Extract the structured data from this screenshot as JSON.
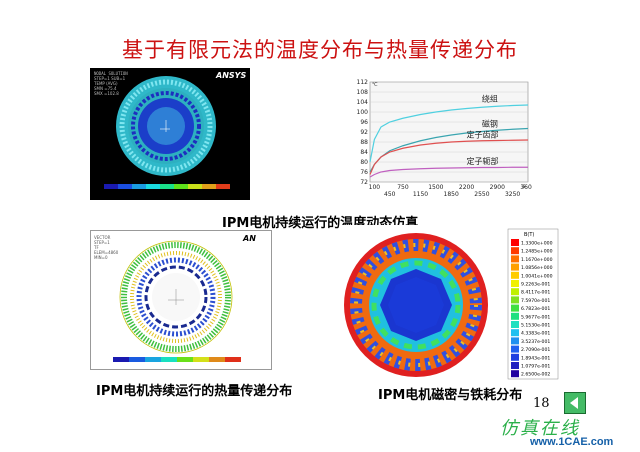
{
  "title": "基于有限元法的温度分布与热量传递分布",
  "captions": {
    "top": "IPM电机持续运行的温度动态仿真",
    "bottom_left": "IPM电机持续运行的热量传递分布",
    "bottom_right": "IPM电机磁密与铁耗分布"
  },
  "logos": {
    "ansys_top": "ANSYS",
    "ansys_bottom": "AN"
  },
  "page_number": "18",
  "watermark": {
    "text": "仿真在线",
    "url": "www.1CAE.com"
  },
  "colors": {
    "title": "#cc1111",
    "watermark": "#2bb04a",
    "url": "#1560a8",
    "nav": "#44bb66"
  },
  "legend_br": {
    "header": "B(T)",
    "values": [
      "1.3300e+000",
      "1.2485e+000",
      "1.1670e+000",
      "1.0856e+000",
      "1.0041e+000",
      "9.2263e-001",
      "8.4117e-001",
      "7.5970e-001",
      "6.7823e-001",
      "5.9677e-001",
      "5.1530e-001",
      "4.3383e-001",
      "3.5237e-001",
      "2.7090e-001",
      "1.8943e-001",
      "1.0797e-001",
      "2.6500e-002"
    ]
  },
  "chart_data": {
    "type": "line",
    "title": "",
    "xlabel": "",
    "ylabel": "",
    "y_unit": "℃",
    "x_unit": "s",
    "ylim": [
      72,
      112
    ],
    "xlim": [
      0,
      3600
    ],
    "y_ticks": [
      "112",
      "108",
      "104",
      "100",
      "96",
      "92",
      "88",
      "84",
      "80",
      "76",
      "72"
    ],
    "x_ticks_row1": [
      "100",
      "750",
      "1500",
      "2200",
      "2900",
      "3600"
    ],
    "x_ticks_row2": [
      "450",
      "1150",
      "1850",
      "2550",
      "3250"
    ],
    "grid": true,
    "series": [
      {
        "name": "绕组",
        "color": "#4fd0e0",
        "x": [
          0,
          100,
          250,
          450,
          750,
          1150,
          1500,
          1850,
          2200,
          2550,
          2900,
          3250,
          3600
        ],
        "y": [
          80,
          89,
          94,
          96,
          97.5,
          99,
          100,
          100.8,
          101.4,
          101.9,
          102.3,
          102.6,
          102.8
        ]
      },
      {
        "name": "磁钢",
        "color": "#3aa5b0",
        "x": [
          0,
          100,
          250,
          450,
          750,
          1150,
          1500,
          1850,
          2200,
          2550,
          2900,
          3250,
          3600
        ],
        "y": [
          76,
          79,
          82,
          84.5,
          86.5,
          88.5,
          89.8,
          90.8,
          91.6,
          92.2,
          92.7,
          93.1,
          93.4
        ]
      },
      {
        "name": "定子齿部",
        "color": "#e05050",
        "x": [
          0,
          100,
          250,
          450,
          750,
          1150,
          1500,
          1850,
          2200,
          2550,
          2900,
          3250,
          3600
        ],
        "y": [
          75,
          79,
          82,
          84,
          85.5,
          86.8,
          87.5,
          88,
          88.3,
          88.5,
          88.6,
          88.7,
          88.8
        ]
      },
      {
        "name": "定子轭部",
        "color": "#c060c0",
        "x": [
          0,
          100,
          250,
          450,
          750,
          1150,
          1500,
          1850,
          2200,
          2550,
          2900,
          3250,
          3600
        ],
        "y": [
          74,
          75,
          76,
          76.6,
          77,
          77.3,
          77.5,
          77.6,
          77.7,
          77.8,
          77.8,
          77.9,
          77.9
        ]
      }
    ]
  }
}
